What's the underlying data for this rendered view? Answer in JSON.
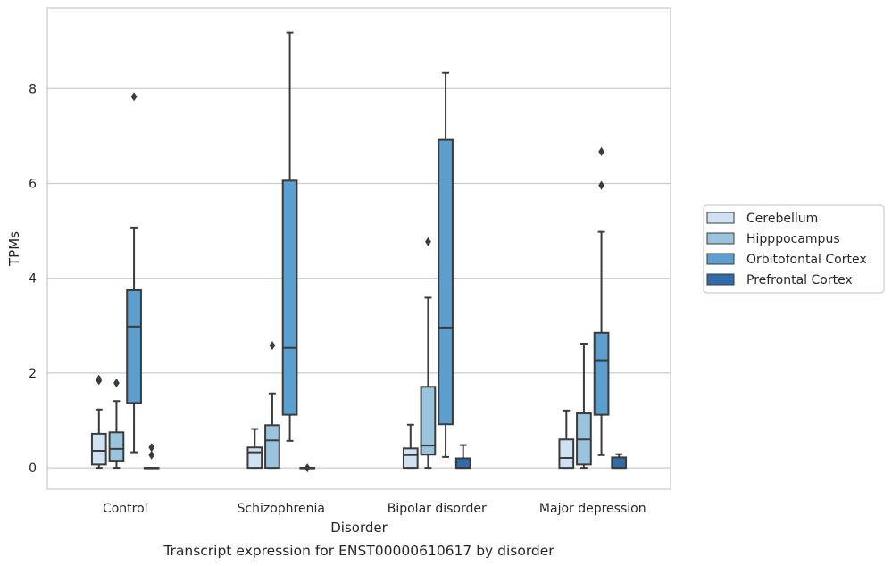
{
  "chart_data": {
    "type": "box",
    "title": "Transcript expression for ENST00000610617 by disorder",
    "xlabel": "Disorder",
    "ylabel": "TPMs",
    "ylim": [
      -0.45,
      9.7
    ],
    "yticks": [
      0,
      2,
      4,
      6,
      8
    ],
    "grid": "horizontal",
    "legend_position": "right",
    "categories": [
      "Control",
      "Schizophrenia",
      "Bipolar disorder",
      "Major depression"
    ],
    "series": [
      {
        "name": "Cerebellum",
        "color": "#d0e1f2",
        "boxes": [
          {
            "whisker_low": 0.0,
            "q1": 0.07,
            "median": 0.36,
            "q3": 0.72,
            "whisker_high": 1.23,
            "outliers": [
              1.84,
              1.87
            ]
          },
          {
            "whisker_low": 0.0,
            "q1": 0.0,
            "median": 0.33,
            "q3": 0.43,
            "whisker_high": 0.82,
            "outliers": []
          },
          {
            "whisker_low": 0.0,
            "q1": 0.0,
            "median": 0.27,
            "q3": 0.41,
            "whisker_high": 0.91,
            "outliers": []
          },
          {
            "whisker_low": 0.0,
            "q1": 0.0,
            "median": 0.21,
            "q3": 0.6,
            "whisker_high": 1.21,
            "outliers": []
          }
        ]
      },
      {
        "name": "Hipppocampus",
        "color": "#9ac3dd",
        "boxes": [
          {
            "whisker_low": 0.0,
            "q1": 0.15,
            "median": 0.4,
            "q3": 0.75,
            "whisker_high": 1.41,
            "outliers": [
              1.79
            ]
          },
          {
            "whisker_low": 0.0,
            "q1": 0.0,
            "median": 0.58,
            "q3": 0.9,
            "whisker_high": 1.57,
            "outliers": [
              2.58
            ]
          },
          {
            "whisker_low": 0.0,
            "q1": 0.28,
            "median": 0.47,
            "q3": 1.71,
            "whisker_high": 3.59,
            "outliers": [
              4.77
            ]
          },
          {
            "whisker_low": 0.0,
            "q1": 0.07,
            "median": 0.6,
            "q3": 1.15,
            "whisker_high": 2.62,
            "outliers": []
          }
        ]
      },
      {
        "name": "Orbitofontal Cortex",
        "color": "#5c9ecd",
        "boxes": [
          {
            "whisker_low": 0.33,
            "q1": 1.37,
            "median": 2.98,
            "q3": 3.75,
            "whisker_high": 5.07,
            "outliers": [
              7.83
            ]
          },
          {
            "whisker_low": 0.57,
            "q1": 1.12,
            "median": 2.53,
            "q3": 6.06,
            "whisker_high": 9.18,
            "outliers": []
          },
          {
            "whisker_low": 0.23,
            "q1": 0.92,
            "median": 2.96,
            "q3": 6.92,
            "whisker_high": 8.33,
            "outliers": []
          },
          {
            "whisker_low": 0.27,
            "q1": 1.12,
            "median": 2.27,
            "q3": 2.85,
            "whisker_high": 4.98,
            "outliers": [
              5.96,
              6.67
            ]
          }
        ]
      },
      {
        "name": "Prefrontal Cortex",
        "color": "#2f6ca9",
        "boxes": [
          {
            "whisker_low": 0.0,
            "q1": 0.0,
            "median": 0.0,
            "q3": 0.0,
            "whisker_high": 0.0,
            "outliers": [
              0.27,
              0.43
            ]
          },
          {
            "whisker_low": 0.0,
            "q1": 0.0,
            "median": 0.0,
            "q3": 0.0,
            "whisker_high": 0.0,
            "outliers": [
              0.0
            ]
          },
          {
            "whisker_low": 0.0,
            "q1": 0.0,
            "median": 0.0,
            "q3": 0.2,
            "whisker_high": 0.48,
            "outliers": []
          },
          {
            "whisker_low": 0.0,
            "q1": 0.0,
            "median": 0.0,
            "q3": 0.22,
            "whisker_high": 0.29,
            "outliers": []
          }
        ]
      }
    ]
  }
}
